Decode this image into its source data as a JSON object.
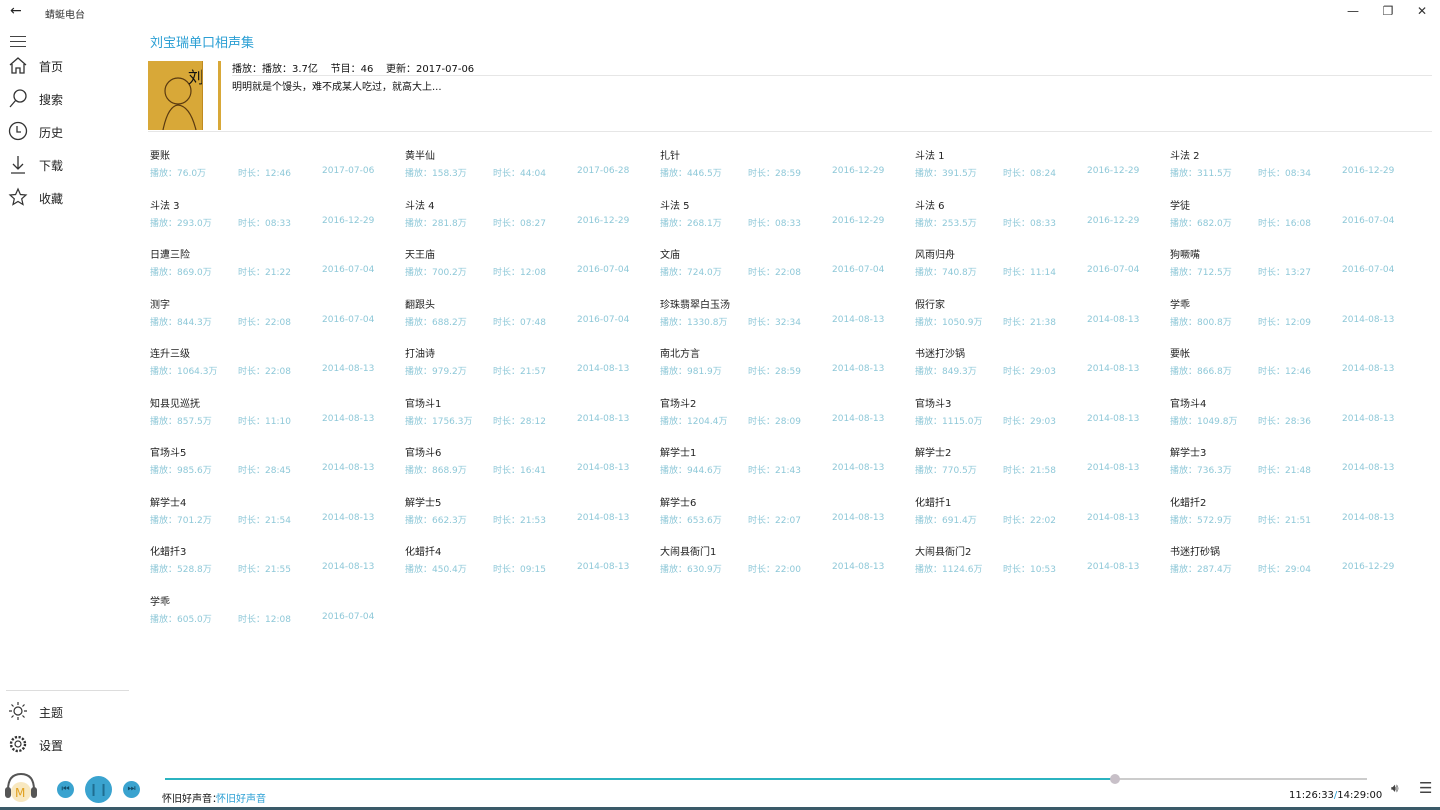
{
  "app": {
    "title": "蜻蜓电台",
    "back_icon": "arrow-left-icon"
  },
  "window": {
    "minimize": "—",
    "maximize": "❐",
    "close": "✕"
  },
  "sidebar": {
    "items": [
      {
        "label": "首页",
        "icon": "home-icon"
      },
      {
        "label": "搜索",
        "icon": "search-icon"
      },
      {
        "label": "历史",
        "icon": "clock-icon"
      },
      {
        "label": "下载",
        "icon": "download-icon"
      },
      {
        "label": "收藏",
        "icon": "star-icon"
      }
    ],
    "bottom": [
      {
        "label": "主题",
        "icon": "sun-icon"
      },
      {
        "label": "设置",
        "icon": "gear-icon"
      }
    ]
  },
  "album": {
    "title": "刘宝瑞单口相声集",
    "meta": "播放：播放：3.7亿    节目：46    更新：2017-07-06",
    "description": "明明就是个馒头，难不成某人吃过，就高大上...",
    "cover_text": "刘宝瑞"
  },
  "episodes": [
    [
      "要账",
      "播放：76.0万",
      "时长：12:46",
      "2017-07-06"
    ],
    [
      "黄半仙",
      "播放：158.3万",
      "时长：44:04",
      "2017-06-28"
    ],
    [
      "扎针",
      "播放：446.5万",
      "时长：28:59",
      "2016-12-29"
    ],
    [
      "斗法 1",
      "播放：391.5万",
      "时长：08:24",
      "2016-12-29"
    ],
    [
      "斗法 2",
      "播放：311.5万",
      "时长：08:34",
      "2016-12-29"
    ],
    [
      "斗法 3",
      "播放：293.0万",
      "时长：08:33",
      "2016-12-29"
    ],
    [
      "斗法 4",
      "播放：281.8万",
      "时长：08:27",
      "2016-12-29"
    ],
    [
      "斗法 5",
      "播放：268.1万",
      "时长：08:33",
      "2016-12-29"
    ],
    [
      "斗法 6",
      "播放：253.5万",
      "时长：08:33",
      "2016-12-29"
    ],
    [
      "学徒",
      "播放：682.0万",
      "时长：16:08",
      "2016-07-04"
    ],
    [
      "日遭三险",
      "播放：869.0万",
      "时长：21:22",
      "2016-07-04"
    ],
    [
      "天王庙",
      "播放：700.2万",
      "时长：12:08",
      "2016-07-04"
    ],
    [
      "文庙",
      "播放：724.0万",
      "时长：22:08",
      "2016-07-04"
    ],
    [
      "风雨归舟",
      "播放：740.8万",
      "时长：11:14",
      "2016-07-04"
    ],
    [
      "狗噘嘴",
      "播放：712.5万",
      "时长：13:27",
      "2016-07-04"
    ],
    [
      "测字",
      "播放：844.3万",
      "时长：22:08",
      "2016-07-04"
    ],
    [
      "翻跟头",
      "播放：688.2万",
      "时长：07:48",
      "2016-07-04"
    ],
    [
      "珍珠翡翠白玉汤",
      "播放：1330.8万",
      "时长：32:34",
      "2014-08-13"
    ],
    [
      "假行家",
      "播放：1050.9万",
      "时长：21:38",
      "2014-08-13"
    ],
    [
      "学乖",
      "播放：800.8万",
      "时长：12:09",
      "2014-08-13"
    ],
    [
      "连升三级",
      "播放：1064.3万",
      "时长：22:08",
      "2014-08-13"
    ],
    [
      "打油诗",
      "播放：979.2万",
      "时长：21:57",
      "2014-08-13"
    ],
    [
      "南北方言",
      "播放：981.9万",
      "时长：28:59",
      "2014-08-13"
    ],
    [
      "书迷打沙锅",
      "播放：849.3万",
      "时长：29:03",
      "2014-08-13"
    ],
    [
      "要帐",
      "播放：866.8万",
      "时长：12:46",
      "2014-08-13"
    ],
    [
      "知县见巡抚",
      "播放：857.5万",
      "时长：11:10",
      "2014-08-13"
    ],
    [
      "官场斗1",
      "播放：1756.3万",
      "时长：28:12",
      "2014-08-13"
    ],
    [
      "官场斗2",
      "播放：1204.4万",
      "时长：28:09",
      "2014-08-13"
    ],
    [
      "官场斗3",
      "播放：1115.0万",
      "时长：29:03",
      "2014-08-13"
    ],
    [
      "官场斗4",
      "播放：1049.8万",
      "时长：28:36",
      "2014-08-13"
    ],
    [
      "官场斗5",
      "播放：985.6万",
      "时长：28:45",
      "2014-08-13"
    ],
    [
      "官场斗6",
      "播放：868.9万",
      "时长：16:41",
      "2014-08-13"
    ],
    [
      "解学士1",
      "播放：944.6万",
      "时长：21:43",
      "2014-08-13"
    ],
    [
      "解学士2",
      "播放：770.5万",
      "时长：21:58",
      "2014-08-13"
    ],
    [
      "解学士3",
      "播放：736.3万",
      "时长：21:48",
      "2014-08-13"
    ],
    [
      "解学士4",
      "播放：701.2万",
      "时长：21:54",
      "2014-08-13"
    ],
    [
      "解学士5",
      "播放：662.3万",
      "时长：21:53",
      "2014-08-13"
    ],
    [
      "解学士6",
      "播放：653.6万",
      "时长：22:07",
      "2014-08-13"
    ],
    [
      "化蜡扦1",
      "播放：691.4万",
      "时长：22:02",
      "2014-08-13"
    ],
    [
      "化蜡扦2",
      "播放：572.9万",
      "时长：21:51",
      "2014-08-13"
    ],
    [
      "化蜡扦3",
      "播放：528.8万",
      "时长：21:55",
      "2014-08-13"
    ],
    [
      "化蜡扦4",
      "播放：450.4万",
      "时长：09:15",
      "2014-08-13"
    ],
    [
      "大闹县衙门1",
      "播放：630.9万",
      "时长：22:00",
      "2014-08-13"
    ],
    [
      "大闹县衙门2",
      "播放：1124.6万",
      "时长：10:53",
      "2014-08-13"
    ],
    [
      "书迷打砂锅",
      "播放：287.4万",
      "时长：29:04",
      "2016-12-29"
    ],
    [
      "学乖",
      "播放：605.0万",
      "时长：12:08",
      "2016-07-04"
    ]
  ],
  "player": {
    "channel_label": "怀旧好声音：",
    "channel_name": "怀旧好声音",
    "current_time": "11:26:33",
    "separator": "/",
    "total_time": "14:29:00",
    "progress": 0.79,
    "state": "playing",
    "accent": "#3aa3cf",
    "logo_icon": "headphones-music-icon"
  },
  "colors": {
    "title": "#2b9fd4",
    "stats": "#8ec8d8",
    "progress": "#2bb3c0"
  }
}
